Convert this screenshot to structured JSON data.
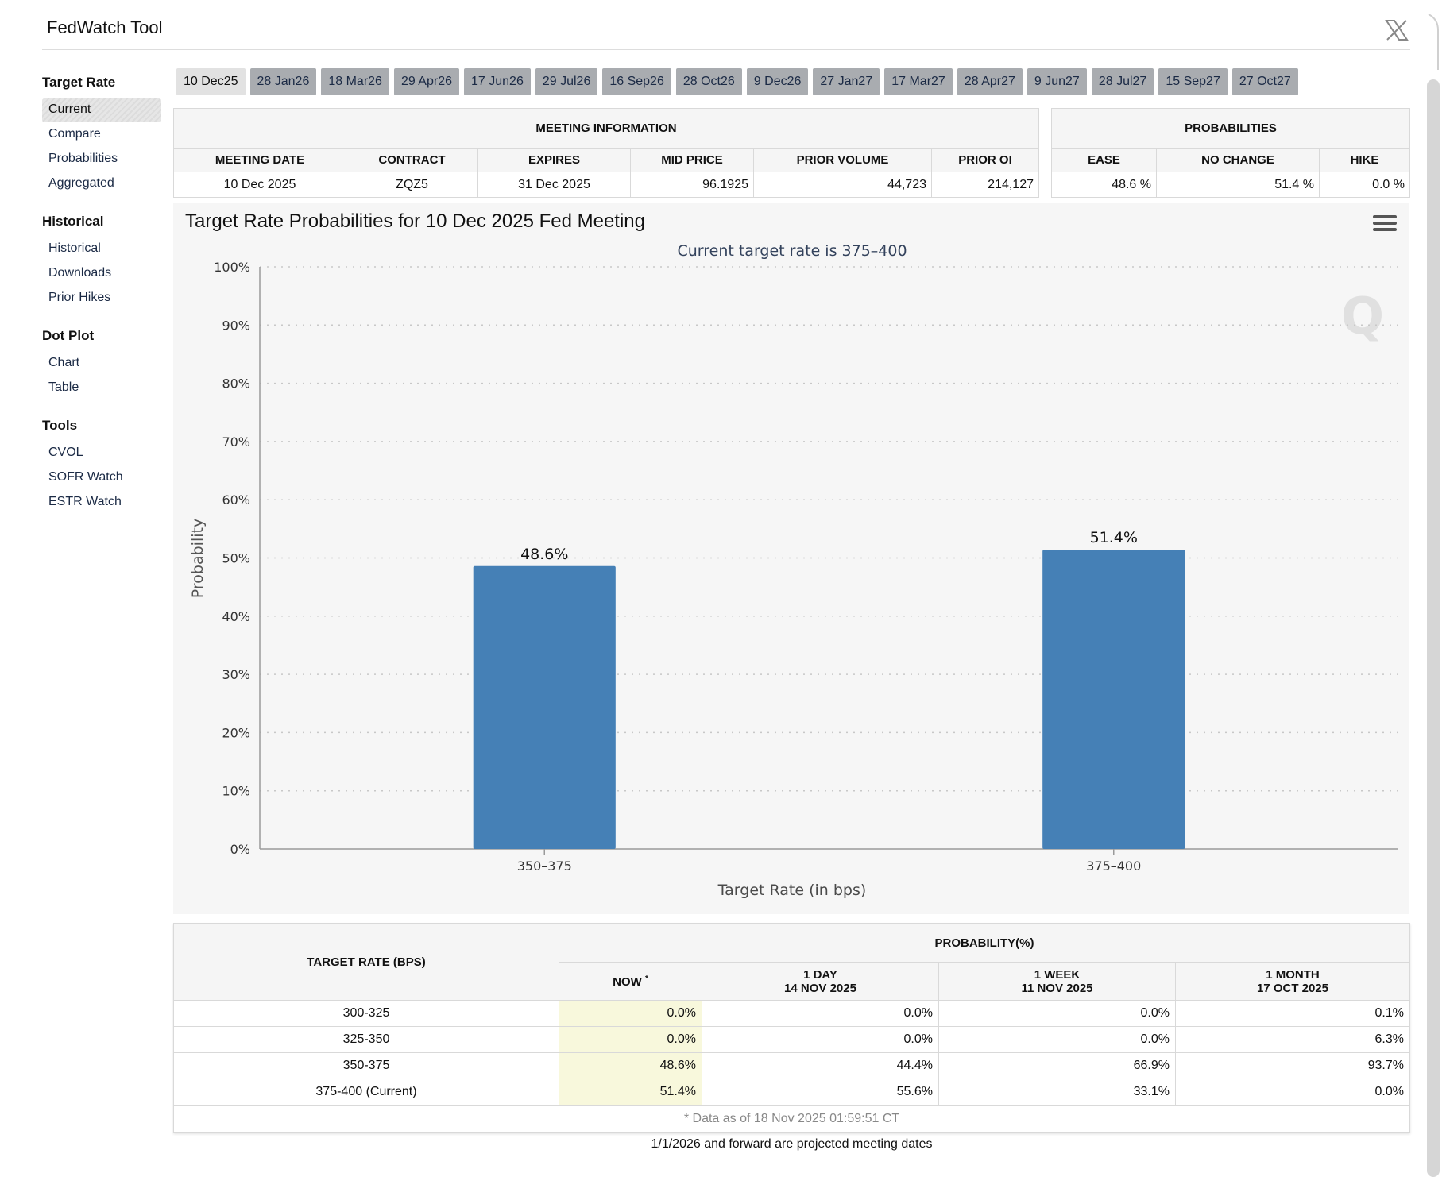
{
  "app": {
    "title": "FedWatch Tool"
  },
  "sidebar": {
    "sections": [
      {
        "heading": "Target Rate",
        "items": [
          "Current",
          "Compare",
          "Probabilities",
          "Aggregated"
        ]
      },
      {
        "heading": "Historical",
        "items": [
          "Historical",
          "Downloads",
          "Prior Hikes"
        ]
      },
      {
        "heading": "Dot Plot",
        "items": [
          "Chart",
          "Table"
        ]
      },
      {
        "heading": "Tools",
        "items": [
          "CVOL",
          "SOFR Watch",
          "ESTR Watch"
        ]
      }
    ],
    "active_item": "Current"
  },
  "tabs": [
    "10 Dec25",
    "28 Jan26",
    "18 Mar26",
    "29 Apr26",
    "17 Jun26",
    "29 Jul26",
    "16 Sep26",
    "28 Oct26",
    "9 Dec26",
    "27 Jan27",
    "17 Mar27",
    "28 Apr27",
    "9 Jun27",
    "28 Jul27",
    "15 Sep27",
    "27 Oct27"
  ],
  "meeting_info": {
    "heading": "MEETING INFORMATION",
    "headers": [
      "MEETING DATE",
      "CONTRACT",
      "EXPIRES",
      "MID PRICE",
      "PRIOR VOLUME",
      "PRIOR OI"
    ],
    "values": [
      "10 Dec 2025",
      "ZQZ5",
      "31 Dec 2025",
      "96.1925",
      "44,723",
      "214,127"
    ]
  },
  "probabilities": {
    "heading": "PROBABILITIES",
    "headers": [
      "EASE",
      "NO CHANGE",
      "HIKE"
    ],
    "values": [
      "48.6 %",
      "51.4 %",
      "0.0 %"
    ]
  },
  "chart_data": {
    "type": "bar",
    "title": "Target Rate Probabilities for 10 Dec 2025 Fed Meeting",
    "subtitle": "Current target rate is 375–400",
    "xlabel": "Target Rate (in bps)",
    "ylabel": "Probability",
    "categories": [
      "350–375",
      "375–400"
    ],
    "values": [
      48.6,
      51.4
    ],
    "data_labels": [
      "48.6%",
      "51.4%"
    ],
    "ylim": [
      0,
      100
    ],
    "yticks": [
      0,
      10,
      20,
      30,
      40,
      50,
      60,
      70,
      80,
      90,
      100
    ],
    "ytick_labels": [
      "0%",
      "10%",
      "20%",
      "30%",
      "40%",
      "50%",
      "60%",
      "70%",
      "80%",
      "90%",
      "100%"
    ],
    "bar_color": "#4580b6",
    "grid": true,
    "watermark": "Q"
  },
  "history": {
    "col_rate": "TARGET RATE (BPS)",
    "col_prob": "PROBABILITY(%)",
    "sub_headers": [
      {
        "line1": "NOW",
        "line2": ""
      },
      {
        "line1": "1 DAY",
        "line2": "14 NOV 2025"
      },
      {
        "line1": "1 WEEK",
        "line2": "11 NOV 2025"
      },
      {
        "line1": "1 MONTH",
        "line2": "17 OCT 2025"
      }
    ],
    "now_marker": "*",
    "rows": [
      {
        "rate": "300-325",
        "now": "0.0%",
        "day": "0.0%",
        "week": "0.0%",
        "month": "0.1%"
      },
      {
        "rate": "325-350",
        "now": "0.0%",
        "day": "0.0%",
        "week": "0.0%",
        "month": "6.3%"
      },
      {
        "rate": "350-375",
        "now": "48.6%",
        "day": "44.4%",
        "week": "66.9%",
        "month": "93.7%"
      },
      {
        "rate": "375-400 (Current)",
        "now": "51.4%",
        "day": "55.6%",
        "week": "33.1%",
        "month": "0.0%"
      }
    ],
    "note": "* Data as of 18 Nov 2025 01:59:51 CT"
  },
  "footer": {
    "projected_note": "1/1/2026 and forward are projected meeting dates"
  }
}
